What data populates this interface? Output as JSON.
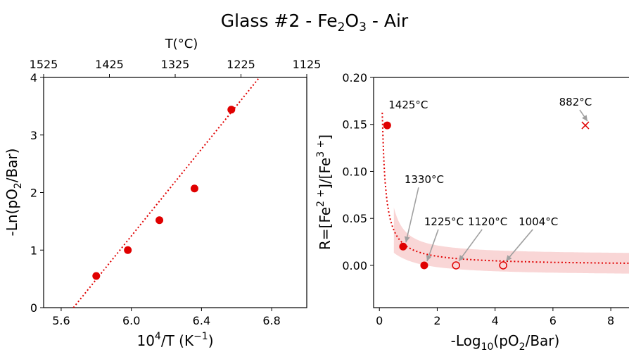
{
  "figure": {
    "title_prefix": "Glass #2 - Fe",
    "title_sub1": "2",
    "title_mid": "O",
    "title_sub2": "3",
    "title_suffix": " - Air"
  },
  "chart_data": [
    {
      "type": "scatter",
      "xlabel_main": "10",
      "xlabel_sup": "4",
      "xlabel_rest": "/T (K",
      "xlabel_sup2": "−1",
      "xlabel_close": ")",
      "ylabel_main": "-Ln(pO",
      "ylabel_sub": "2",
      "ylabel_rest": "/Bar)",
      "top_axis_label": "T(°C)",
      "top_axis_ticks": [
        "1525",
        "1425",
        "1325",
        "1225",
        "1125"
      ],
      "xlim": [
        5.5,
        7.0
      ],
      "ylim": [
        0,
        4
      ],
      "x_ticks": [
        "5.6",
        "6.0",
        "6.4",
        "6.8"
      ],
      "y_ticks": [
        "0",
        "1",
        "2",
        "3",
        "4"
      ],
      "series": [
        {
          "marker": "circle-filled",
          "color": "#e00000",
          "x": [
            5.8,
            5.98,
            6.16,
            6.36,
            6.57
          ],
          "y": [
            0.55,
            1.0,
            1.52,
            2.07,
            3.44
          ]
        }
      ],
      "fit_line": {
        "style": "dotted",
        "color": "#e00000",
        "x": [
          5.67,
          6.73
        ],
        "y": [
          0.0,
          4.0
        ]
      }
    },
    {
      "type": "scatter",
      "xlabel_main": "-Log",
      "xlabel_sub": "10",
      "xlabel_rest": "(pO",
      "xlabel_sub2": "2",
      "xlabel_close": "/Bar)",
      "ylabel_main": "R=[Fe",
      "ylabel_sup": "2 +",
      "ylabel_mid": "]/[Fe",
      "ylabel_sup2": "3 +",
      "ylabel_close": "]",
      "xlim": [
        -0.2,
        8.8
      ],
      "ylim": [
        -0.045,
        0.2
      ],
      "x_ticks": [
        "0",
        "2",
        "4",
        "6",
        "8"
      ],
      "y_ticks": [
        "0.00",
        "0.05",
        "0.10",
        "0.15",
        "0.20"
      ],
      "points": [
        {
          "label": "1425°C",
          "x": 0.27,
          "y": 0.149,
          "marker": "circle-filled"
        },
        {
          "label": "1330°C",
          "x": 0.82,
          "y": 0.02,
          "marker": "circle-filled"
        },
        {
          "label": "1225°C",
          "x": 1.55,
          "y": 0.0,
          "marker": "circle-filled"
        },
        {
          "label": "1120°C",
          "x": 2.65,
          "y": 0.0,
          "marker": "circle-open"
        },
        {
          "label": "1004°C",
          "x": 4.28,
          "y": 0.0,
          "marker": "circle-open"
        },
        {
          "label": "882°C",
          "x": 7.12,
          "y": 0.149,
          "marker": "x"
        }
      ],
      "fit_curve": {
        "style": "dotted",
        "color": "#e00000",
        "band": true,
        "band_color": "#f9d6d6"
      }
    }
  ]
}
